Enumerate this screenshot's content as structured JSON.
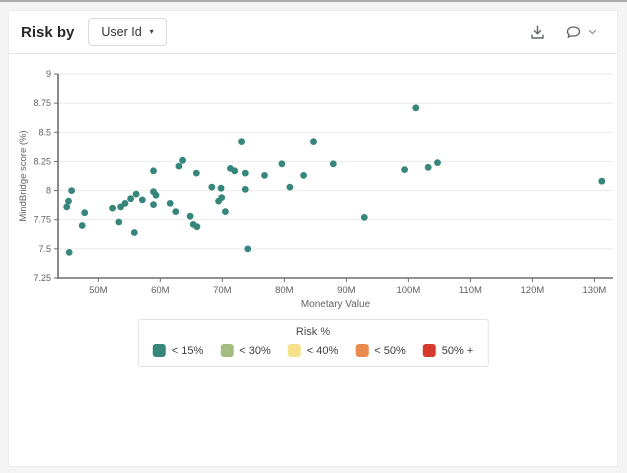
{
  "header": {
    "title": "Risk by",
    "dropdown_value": "User Id",
    "icons": {
      "dropdown_caret": "chevron-down",
      "download": "download-tray",
      "comment": "speech-bubble",
      "comment_caret": "chevron-down"
    }
  },
  "legend": {
    "title": "Risk %",
    "items": [
      {
        "label": "< 15%",
        "color": "#37867B"
      },
      {
        "label": "< 30%",
        "color": "#A3BE80"
      },
      {
        "label": "< 40%",
        "color": "#F6E289"
      },
      {
        "label": "< 50%",
        "color": "#E98B4E"
      },
      {
        "label": "50% +",
        "color": "#D63A2D"
      }
    ]
  },
  "colors": {
    "accent_teal": "#37867B",
    "axis": "#6e6e6e",
    "grid": "#e9e9e9",
    "tick_text": "#616161",
    "axis_title_text": "#5f6368"
  },
  "chart_data": {
    "type": "scatter",
    "title": "",
    "xlabel": "Monetary Value",
    "ylabel": "MindBridge score (%)",
    "xlim": [
      43.5,
      133
    ],
    "ylim": [
      7.25,
      9
    ],
    "grid": "horizontal",
    "legend_position": "bottom",
    "x_ticks": [
      {
        "value": 50,
        "label": "50M"
      },
      {
        "value": 60,
        "label": "60M"
      },
      {
        "value": 70,
        "label": "70M"
      },
      {
        "value": 80,
        "label": "80M"
      },
      {
        "value": 90,
        "label": "90M"
      },
      {
        "value": 100,
        "label": "100M"
      },
      {
        "value": 110,
        "label": "110M"
      },
      {
        "value": 120,
        "label": "120M"
      },
      {
        "value": 130,
        "label": "130M"
      }
    ],
    "y_ticks": [
      {
        "value": 9,
        "label": "9"
      },
      {
        "value": 8.75,
        "label": "8.75"
      },
      {
        "value": 8.5,
        "label": "8.5"
      },
      {
        "value": 8.25,
        "label": "8.25"
      },
      {
        "value": 8,
        "label": "8"
      },
      {
        "value": 7.75,
        "label": "7.75"
      },
      {
        "value": 7.5,
        "label": "7.5"
      },
      {
        "value": 7.25,
        "label": "7.25"
      }
    ],
    "series": [
      {
        "name": "< 15%",
        "color": "#37867B",
        "points": [
          [
            45.7,
            8.0
          ],
          [
            45.2,
            7.91
          ],
          [
            44.9,
            7.86
          ],
          [
            47.8,
            7.81
          ],
          [
            47.4,
            7.7
          ],
          [
            45.3,
            7.47
          ],
          [
            52.3,
            7.85
          ],
          [
            53.6,
            7.86
          ],
          [
            53.3,
            7.73
          ],
          [
            54.3,
            7.89
          ],
          [
            55.2,
            7.93
          ],
          [
            56.1,
            7.97
          ],
          [
            55.8,
            7.64
          ],
          [
            57.1,
            7.92
          ],
          [
            58.9,
            8.17
          ],
          [
            58.9,
            7.99
          ],
          [
            59.3,
            7.96
          ],
          [
            58.9,
            7.88
          ],
          [
            61.6,
            7.89
          ],
          [
            62.5,
            7.82
          ],
          [
            63.0,
            8.21
          ],
          [
            63.6,
            8.26
          ],
          [
            64.8,
            7.78
          ],
          [
            65.3,
            7.71
          ],
          [
            65.9,
            7.69
          ],
          [
            65.8,
            8.15
          ],
          [
            68.3,
            8.03
          ],
          [
            69.8,
            8.02
          ],
          [
            69.4,
            7.91
          ],
          [
            69.9,
            7.94
          ],
          [
            70.5,
            7.82
          ],
          [
            71.3,
            8.19
          ],
          [
            72.0,
            8.17
          ],
          [
            73.1,
            8.42
          ],
          [
            73.7,
            8.15
          ],
          [
            73.7,
            8.01
          ],
          [
            74.1,
            7.5
          ],
          [
            76.8,
            8.13
          ],
          [
            79.6,
            8.23
          ],
          [
            80.9,
            8.03
          ],
          [
            83.1,
            8.13
          ],
          [
            84.7,
            8.42
          ],
          [
            87.9,
            8.23
          ],
          [
            92.9,
            7.77
          ],
          [
            99.4,
            8.18
          ],
          [
            101.2,
            8.71
          ],
          [
            103.2,
            8.2
          ],
          [
            104.7,
            8.24
          ],
          [
            131.2,
            8.08
          ]
        ]
      }
    ]
  }
}
